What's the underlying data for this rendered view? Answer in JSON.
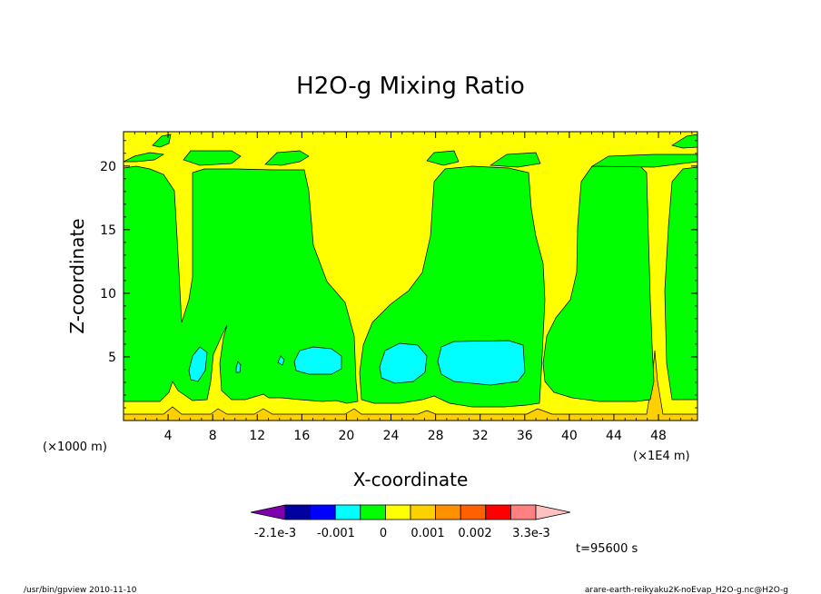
{
  "chart_data": {
    "type": "heatmap",
    "title": "H2O-g Mixing Ratio",
    "xlabel": "X-coordinate",
    "ylabel": "Z-coordinate",
    "x_unit_left": "(×1000 m)",
    "x_unit_right": "(×1E4 m)",
    "xlim": [
      0,
      51.5
    ],
    "ylim": [
      0,
      22.7
    ],
    "x_ticks": [
      "4",
      "8",
      "12",
      "16",
      "20",
      "24",
      "28",
      "32",
      "36",
      "40",
      "44",
      "48"
    ],
    "y_ticks": [
      "5",
      "10",
      "15",
      "20"
    ],
    "x_tick_values": [
      4,
      8,
      12,
      16,
      20,
      24,
      28,
      32,
      36,
      40,
      44,
      48
    ],
    "y_tick_values": [
      5,
      10,
      15,
      20
    ],
    "colorbar": {
      "labels": [
        "-2.1e-3",
        "-0.001",
        "0",
        "0.001",
        "0.002",
        "3.3e-3"
      ],
      "colors": [
        "#8000b0",
        "#0000a0",
        "#0000ff",
        "#00ffff",
        "#00ff00",
        "#ffff00",
        "#ffd000",
        "#ff9000",
        "#ff6000",
        "#ff0000",
        "#ff8080",
        "#ffc0c0"
      ]
    },
    "time_label": "t=95600 s",
    "colors": {
      "background_level": "#ffff00",
      "moist_level": "#00ff00",
      "high_level": "#00ffff",
      "low_level": "#ffd000"
    }
  },
  "footer": {
    "left": "/usr/bin/gpview   2010-11-10",
    "right": "arare-earth-reikyaku2K-noEvap_H2O-g.nc@H2O-g"
  }
}
